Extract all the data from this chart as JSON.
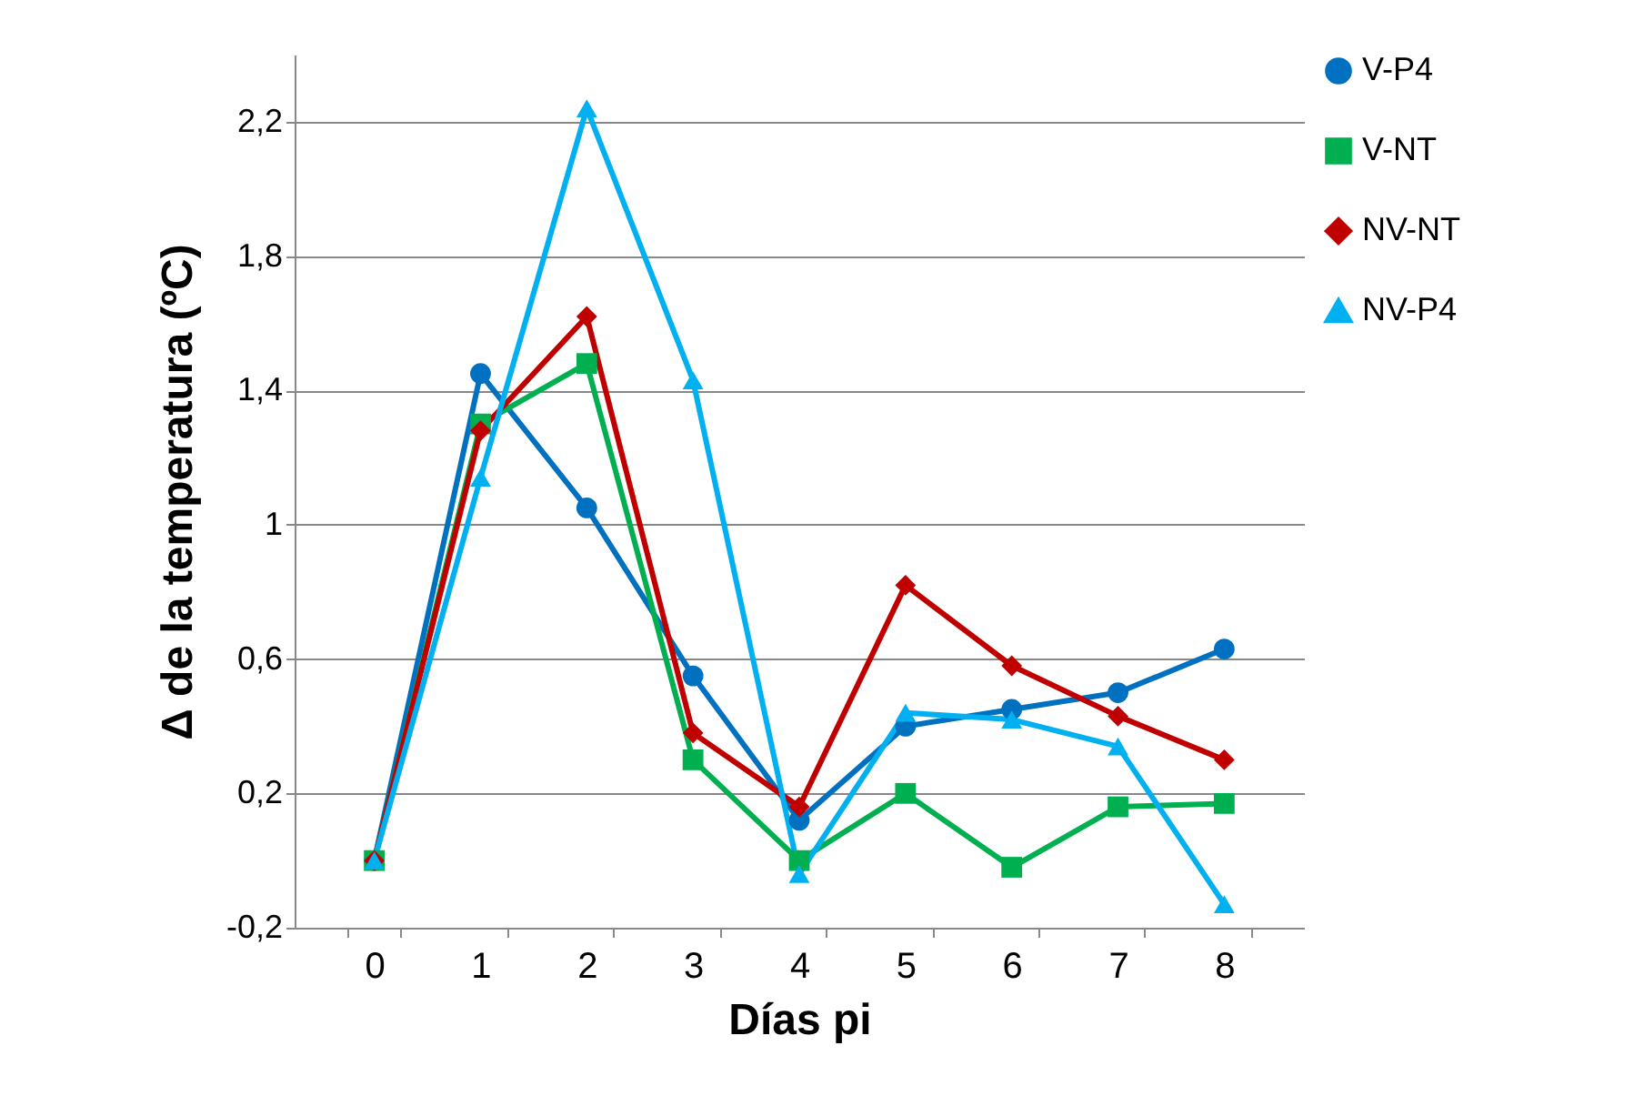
{
  "chart_data": {
    "type": "line",
    "xlabel": "Días pi",
    "ylabel": "Δ de la temperatura (ºC)",
    "categories": [
      "0",
      "1",
      "2",
      "3",
      "4",
      "5",
      "6",
      "7",
      "8"
    ],
    "series": [
      {
        "name": "V-P4",
        "color": "#0070c0",
        "marker": "circle",
        "values": [
          0,
          1.45,
          1.05,
          0.55,
          0.12,
          0.4,
          0.45,
          0.5,
          0.63
        ]
      },
      {
        "name": "V-NT",
        "color": "#00b050",
        "marker": "square",
        "values": [
          0,
          1.3,
          1.48,
          0.3,
          0.0,
          0.2,
          -0.02,
          0.16,
          0.17
        ]
      },
      {
        "name": "NV-NT",
        "color": "#c00000",
        "marker": "diamond",
        "values": [
          0,
          1.28,
          1.62,
          0.38,
          0.16,
          0.82,
          0.58,
          0.43,
          0.3
        ]
      },
      {
        "name": "NV-P4",
        "color": "#00b0f0",
        "marker": "triangle",
        "values": [
          0,
          1.14,
          2.24,
          1.43,
          -0.04,
          0.44,
          0.42,
          0.34,
          -0.13
        ]
      }
    ],
    "ylim": [
      -0.2,
      2.4
    ],
    "yticks": [
      {
        "value": -0.2,
        "label": "-0,2"
      },
      {
        "value": 0.2,
        "label": "0,2"
      },
      {
        "value": 0.6,
        "label": "0,6"
      },
      {
        "value": 1,
        "label": "1"
      },
      {
        "value": 1.4,
        "label": "1,4"
      },
      {
        "value": 1.8,
        "label": "1,8"
      },
      {
        "value": 2.2,
        "label": "2,2"
      }
    ],
    "grid": "y",
    "legend": "right",
    "line_style": "solid"
  }
}
